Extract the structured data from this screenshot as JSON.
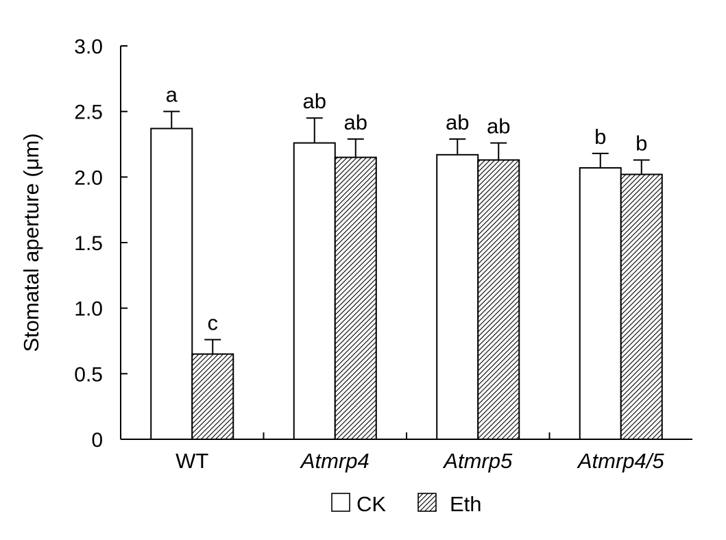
{
  "chart_data": {
    "type": "bar",
    "ylabel": "Stomatal aperture (μm)",
    "xlabel": "",
    "ylim": [
      0,
      3.0
    ],
    "yticks": [
      "0",
      "0.5",
      "1.0",
      "1.5",
      "2.0",
      "2.5",
      "3.0"
    ],
    "categories": [
      "WT",
      "Atmrp4",
      "Atmrp5",
      "Atmrp4/5"
    ],
    "category_italic": [
      false,
      true,
      true,
      true
    ],
    "series": [
      {
        "name": "CK",
        "fill": "white",
        "values": [
          2.37,
          2.26,
          2.17,
          2.07
        ],
        "errors": [
          0.13,
          0.19,
          0.12,
          0.11
        ],
        "labels": [
          "a",
          "ab",
          "ab",
          "b"
        ]
      },
      {
        "name": "Eth",
        "fill": "hatched",
        "values": [
          0.65,
          2.15,
          2.13,
          2.02
        ],
        "errors": [
          0.11,
          0.14,
          0.13,
          0.11
        ],
        "labels": [
          "c",
          "ab",
          "ab",
          "b"
        ]
      }
    ],
    "legend_position": "bottom-center",
    "grid": false
  }
}
